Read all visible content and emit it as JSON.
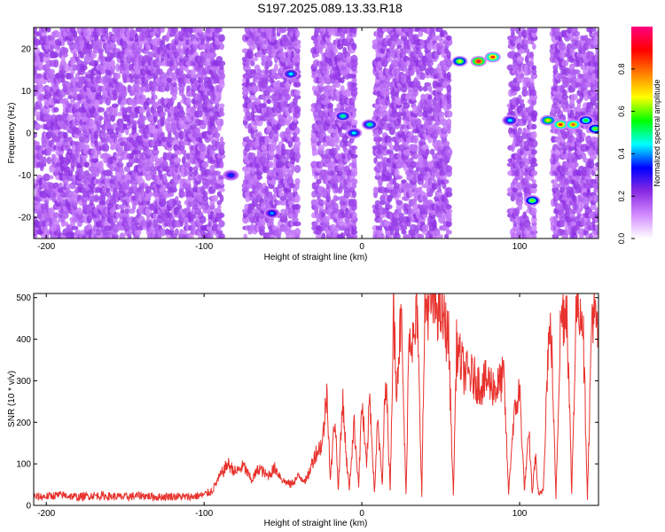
{
  "title": "S197.2025.089.13.33.R18",
  "chart_data": [
    {
      "type": "heatmap",
      "xlabel": "Height of straight line (km)",
      "ylabel": "Frequency (Hz)",
      "xlim": [
        -208,
        150
      ],
      "ylim": [
        -25,
        25
      ],
      "xticks": [
        -200,
        -100,
        0,
        100
      ],
      "yticks": [
        -20,
        -10,
        0,
        10,
        20
      ],
      "colorbar": {
        "label": "Normalized spectral amplitude",
        "range": [
          0,
          1
        ],
        "ticks": [
          0.0,
          0.2,
          0.4,
          0.6,
          0.8
        ],
        "colors": [
          "#ffffff",
          "#d28cff",
          "#8a2be2",
          "#0000ff",
          "#00ffff",
          "#00ff00",
          "#ffff00",
          "#ff8000",
          "#ff0000",
          "#ff0080"
        ]
      },
      "dense_regions_x": [
        [
          -208,
          -88
        ],
        [
          -75,
          -40
        ],
        [
          -32,
          -5
        ],
        [
          8,
          55
        ],
        [
          93,
          110
        ],
        [
          120,
          150
        ]
      ],
      "clear_regions_x": [
        [
          -88,
          -75
        ],
        [
          -40,
          -32
        ],
        [
          -5,
          8
        ],
        [
          55,
          93
        ],
        [
          110,
          120
        ]
      ],
      "hotspots": [
        {
          "x": -83,
          "y": -10,
          "value": 0.35
        },
        {
          "x": -57,
          "y": -19,
          "value": 0.4
        },
        {
          "x": -45,
          "y": 14,
          "value": 0.45
        },
        {
          "x": -12,
          "y": 4,
          "value": 0.5
        },
        {
          "x": -5,
          "y": 0,
          "value": 0.45
        },
        {
          "x": 5,
          "y": 2,
          "value": 0.5
        },
        {
          "x": 62,
          "y": 17,
          "value": 0.65
        },
        {
          "x": 74,
          "y": 17,
          "value": 0.95
        },
        {
          "x": 83,
          "y": 18,
          "value": 0.85
        },
        {
          "x": 94,
          "y": 3,
          "value": 0.45
        },
        {
          "x": 108,
          "y": -16,
          "value": 0.6
        },
        {
          "x": 118,
          "y": 3,
          "value": 0.7
        },
        {
          "x": 126,
          "y": 2,
          "value": 0.85
        },
        {
          "x": 134,
          "y": 2,
          "value": 0.8
        },
        {
          "x": 142,
          "y": 3,
          "value": 0.55
        },
        {
          "x": 148,
          "y": 1,
          "value": 0.6
        }
      ]
    },
    {
      "type": "line",
      "xlabel": "Height of straight line (km)",
      "ylabel": "SNR (10 * v/v)",
      "xlim": [
        -208,
        150
      ],
      "ylim": [
        0,
        510
      ],
      "xticks": [
        -200,
        -100,
        0,
        100
      ],
      "yticks": [
        0,
        100,
        200,
        300,
        400,
        500
      ],
      "series": [
        {
          "color": "#e8322d",
          "x": [
            -208,
            -200,
            -190,
            -180,
            -170,
            -160,
            -150,
            -140,
            -130,
            -120,
            -110,
            -100,
            -95,
            -90,
            -85,
            -80,
            -75,
            -70,
            -65,
            -60,
            -55,
            -50,
            -45,
            -40,
            -35,
            -30,
            -25,
            -22,
            -20,
            -17,
            -15,
            -12,
            -10,
            -8,
            -5,
            -2,
            0,
            3,
            5,
            8,
            10,
            13,
            15,
            18,
            20,
            22,
            25,
            28,
            30,
            33,
            35,
            38,
            40,
            45,
            50,
            55,
            58,
            60,
            65,
            70,
            75,
            80,
            85,
            90,
            93,
            96,
            100,
            103,
            106,
            108,
            110,
            112,
            115,
            118,
            120,
            123,
            126,
            130,
            133,
            136,
            140,
            143,
            146,
            150
          ],
          "values": [
            20,
            22,
            25,
            20,
            24,
            22,
            20,
            24,
            20,
            22,
            20,
            25,
            35,
            70,
            100,
            80,
            95,
            60,
            90,
            70,
            90,
            60,
            50,
            70,
            60,
            120,
            150,
            280,
            60,
            220,
            40,
            260,
            120,
            40,
            200,
            50,
            250,
            90,
            270,
            30,
            200,
            50,
            330,
            40,
            460,
            300,
            450,
            20,
            440,
            380,
            470,
            30,
            480,
            490,
            470,
            400,
            20,
            380,
            320,
            310,
            290,
            300,
            280,
            310,
            30,
            200,
            280,
            40,
            170,
            30,
            120,
            20,
            40,
            380,
            420,
            20,
            450,
            480,
            30,
            490,
            470,
            20,
            480,
            400
          ]
        }
      ]
    }
  ]
}
